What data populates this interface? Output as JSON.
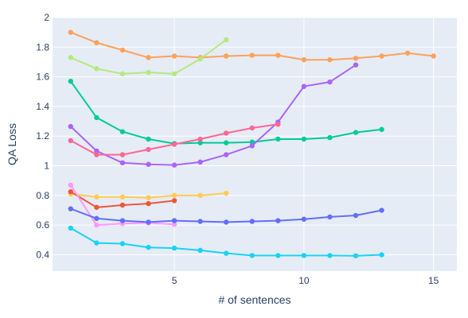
{
  "chart_data": {
    "type": "line",
    "title": "",
    "xlabel": "# of sentences",
    "ylabel": "QA Loss",
    "xlim": [
      0.3,
      15.9
    ],
    "ylim": [
      0.29,
      2.0
    ],
    "xticks": [
      5,
      10,
      15
    ],
    "yticks": [
      0.4,
      0.6,
      0.8,
      1,
      1.2,
      1.4,
      1.6,
      1.8,
      2
    ],
    "grid": true,
    "legend": "none",
    "colors": {
      "plot_background": "#e5ecf6",
      "grid": "#ffffff",
      "text": "#2a3f5f"
    },
    "series": [
      {
        "color": "#fea15a",
        "x": [
          1,
          2,
          3,
          4,
          5,
          6,
          7,
          8,
          9,
          10,
          11,
          12,
          13,
          14,
          15
        ],
        "y": [
          1.9,
          1.83,
          1.78,
          1.73,
          1.74,
          1.73,
          1.74,
          1.745,
          1.745,
          1.715,
          1.715,
          1.725,
          1.74,
          1.76,
          1.74
        ]
      },
      {
        "color": "#b6e880",
        "x": [
          1,
          2,
          3,
          4,
          5,
          6,
          7
        ],
        "y": [
          1.73,
          1.655,
          1.62,
          1.63,
          1.62,
          1.72,
          1.85
        ]
      },
      {
        "color": "#00cc96",
        "x": [
          1,
          2,
          3,
          4,
          5,
          6,
          7,
          8,
          9,
          10,
          11,
          12,
          13
        ],
        "y": [
          1.57,
          1.325,
          1.23,
          1.18,
          1.15,
          1.155,
          1.155,
          1.16,
          1.18,
          1.18,
          1.19,
          1.225,
          1.245
        ]
      },
      {
        "color": "#ab63fa",
        "x": [
          1,
          2,
          3,
          4,
          5,
          6,
          7,
          8,
          9,
          10,
          11,
          12
        ],
        "y": [
          1.265,
          1.1,
          1.02,
          1.01,
          1.005,
          1.025,
          1.075,
          1.135,
          1.295,
          1.535,
          1.565,
          1.68
        ]
      },
      {
        "color": "#ff6692",
        "x": [
          1,
          2,
          3,
          4,
          5,
          6,
          7,
          8,
          9
        ],
        "y": [
          1.17,
          1.075,
          1.075,
          1.11,
          1.145,
          1.18,
          1.22,
          1.255,
          1.28
        ]
      },
      {
        "color": "#fecb52",
        "x": [
          1,
          2,
          3,
          4,
          5,
          6,
          7
        ],
        "y": [
          0.81,
          0.79,
          0.79,
          0.785,
          0.8,
          0.8,
          0.815
        ]
      },
      {
        "color": "#ef553b",
        "x": [
          1,
          2,
          3,
          4,
          5
        ],
        "y": [
          0.825,
          0.72,
          0.735,
          0.745,
          0.765
        ]
      },
      {
        "color": "#ff97ff",
        "x": [
          1,
          2,
          3,
          4,
          5
        ],
        "y": [
          0.87,
          0.6,
          0.61,
          0.615,
          0.605
        ]
      },
      {
        "color": "#636efa",
        "x": [
          1,
          2,
          3,
          4,
          5,
          6,
          7,
          8,
          9,
          10,
          11,
          12,
          13
        ],
        "y": [
          0.71,
          0.645,
          0.63,
          0.62,
          0.63,
          0.625,
          0.62,
          0.625,
          0.63,
          0.64,
          0.655,
          0.665,
          0.7
        ]
      },
      {
        "color": "#19d3f3",
        "x": [
          1,
          2,
          3,
          4,
          5,
          6,
          7,
          8,
          9,
          10,
          11,
          12,
          13
        ],
        "y": [
          0.58,
          0.48,
          0.475,
          0.45,
          0.445,
          0.43,
          0.41,
          0.395,
          0.395,
          0.395,
          0.395,
          0.393,
          0.4
        ]
      }
    ]
  }
}
